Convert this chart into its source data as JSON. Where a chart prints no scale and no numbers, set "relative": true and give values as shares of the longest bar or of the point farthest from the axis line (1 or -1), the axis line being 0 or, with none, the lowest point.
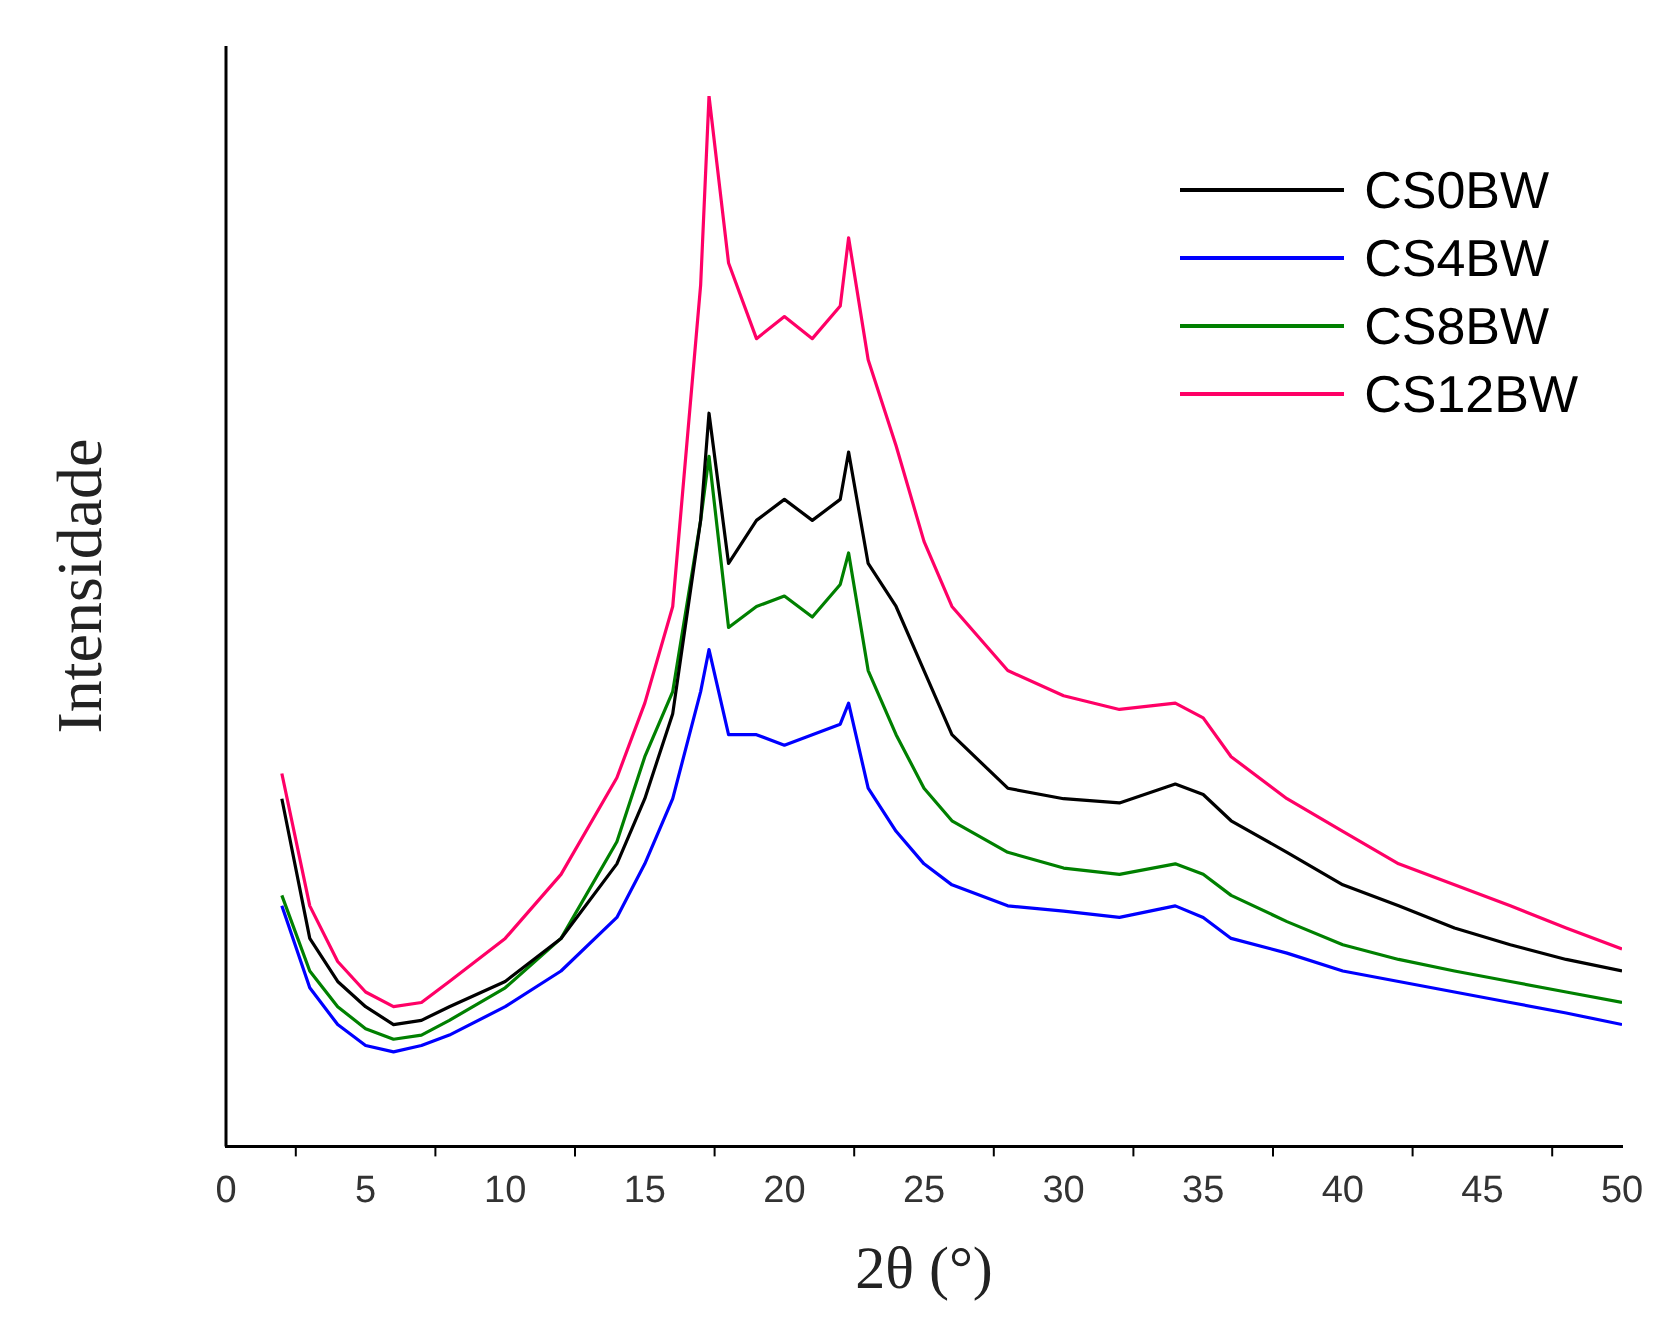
{
  "chart_data": {
    "type": "line",
    "xlabel": "2θ (°)",
    "ylabel": "Intensidade",
    "relative": true,
    "legend": "top right",
    "marker": "none",
    "line_style": "solid",
    "grid": false,
    "xlim": [
      0,
      50
    ],
    "xticks": [
      0,
      5,
      10,
      15,
      20,
      25,
      30,
      35,
      40,
      45,
      50
    ],
    "x": [
      2,
      3,
      4,
      5,
      6,
      7,
      8,
      10,
      12,
      14,
      15,
      16,
      17,
      17.3,
      18,
      19,
      20,
      21,
      22,
      22.3,
      23,
      24,
      25,
      26,
      28,
      30,
      32,
      34,
      35,
      36,
      38,
      40,
      42,
      44,
      46,
      48,
      50
    ],
    "series": [
      {
        "name": "CS0BW",
        "color": "#000000",
        "values": [
          0.331,
          0.198,
          0.157,
          0.133,
          0.116,
          0.12,
          0.133,
          0.157,
          0.198,
          0.269,
          0.331,
          0.412,
          0.596,
          0.698,
          0.555,
          0.596,
          0.616,
          0.596,
          0.616,
          0.661,
          0.555,
          0.514,
          0.453,
          0.392,
          0.341,
          0.331,
          0.327,
          0.345,
          0.335,
          0.31,
          0.28,
          0.249,
          0.229,
          0.208,
          0.192,
          0.178,
          0.167
        ]
      },
      {
        "name": "CS4BW",
        "color": "#0000ff",
        "values": [
          0.229,
          0.151,
          0.116,
          0.096,
          0.09,
          0.096,
          0.106,
          0.133,
          0.167,
          0.218,
          0.269,
          0.331,
          0.433,
          0.473,
          0.392,
          0.392,
          0.382,
          0.392,
          0.402,
          0.422,
          0.341,
          0.3,
          0.269,
          0.249,
          0.229,
          0.224,
          0.218,
          0.229,
          0.218,
          0.198,
          0.184,
          0.167,
          0.157,
          0.147,
          0.137,
          0.127,
          0.116
        ]
      },
      {
        "name": "CS8BW",
        "color": "#008000",
        "values": [
          0.239,
          0.167,
          0.133,
          0.112,
          0.102,
          0.106,
          0.12,
          0.151,
          0.198,
          0.29,
          0.371,
          0.433,
          0.596,
          0.657,
          0.494,
          0.514,
          0.524,
          0.504,
          0.535,
          0.565,
          0.453,
          0.392,
          0.341,
          0.31,
          0.28,
          0.265,
          0.259,
          0.269,
          0.259,
          0.239,
          0.214,
          0.192,
          0.178,
          0.167,
          0.157,
          0.147,
          0.137
        ]
      },
      {
        "name": "CS12BW",
        "color": "#ff0066",
        "values": [
          0.355,
          0.229,
          0.176,
          0.147,
          0.133,
          0.137,
          0.157,
          0.198,
          0.259,
          0.351,
          0.422,
          0.514,
          0.82,
          1,
          0.841,
          0.769,
          0.79,
          0.769,
          0.8,
          0.865,
          0.749,
          0.667,
          0.576,
          0.514,
          0.453,
          0.429,
          0.416,
          0.422,
          0.408,
          0.371,
          0.331,
          0.3,
          0.269,
          0.249,
          0.229,
          0.208,
          0.188
        ]
      }
    ]
  }
}
